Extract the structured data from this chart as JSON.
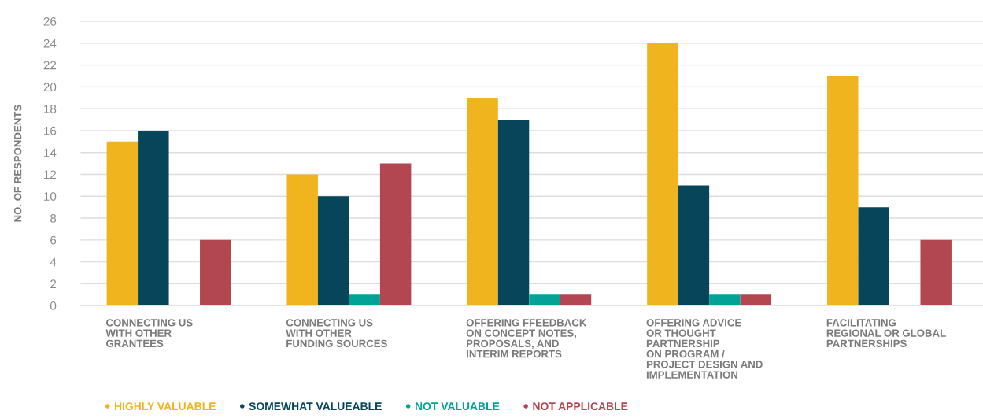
{
  "chart_data": {
    "type": "bar",
    "ylabel": "NO. OF RESPONDENTS",
    "categories": [
      "CONNECTING US\nWITH OTHER\nGRANTEES",
      "CONNECTING US\nWITH OTHER\nFUNDING SOURCES",
      "OFFERING FFEEDBACK\nON CONCEPT NOTES,\nPROPOSALS, AND\nINTERIM REPORTS",
      "OFFERING ADVICE\nOR THOUGHT\nPARTNERSHIP\nON PROGRAM /\nPROJECT DESIGN AND\nIMPLEMENTATION",
      "FACILITATING\nREGIONAL OR GLOBAL\nPARTNERSHIPS"
    ],
    "series": [
      {
        "name": "HIGHLY VALUABLE",
        "color": "#f0b41e",
        "values": [
          15,
          12,
          19,
          24,
          21
        ]
      },
      {
        "name": "SOMEWHAT VALUEABLE",
        "color": "#06455a",
        "values": [
          16,
          10,
          17,
          11,
          9
        ]
      },
      {
        "name": "NOT VALUABLE",
        "color": "#00a396",
        "values": [
          0,
          1,
          1,
          1,
          0
        ]
      },
      {
        "name": "NOT APPLICABLE",
        "color": "#b34751",
        "values": [
          6,
          13,
          1,
          1,
          6
        ]
      }
    ],
    "ylim": [
      0,
      26
    ],
    "yticks": [
      0,
      2,
      4,
      6,
      8,
      10,
      12,
      14,
      16,
      18,
      20,
      22,
      24,
      26
    ],
    "grid": "y",
    "legend": "bottom"
  }
}
